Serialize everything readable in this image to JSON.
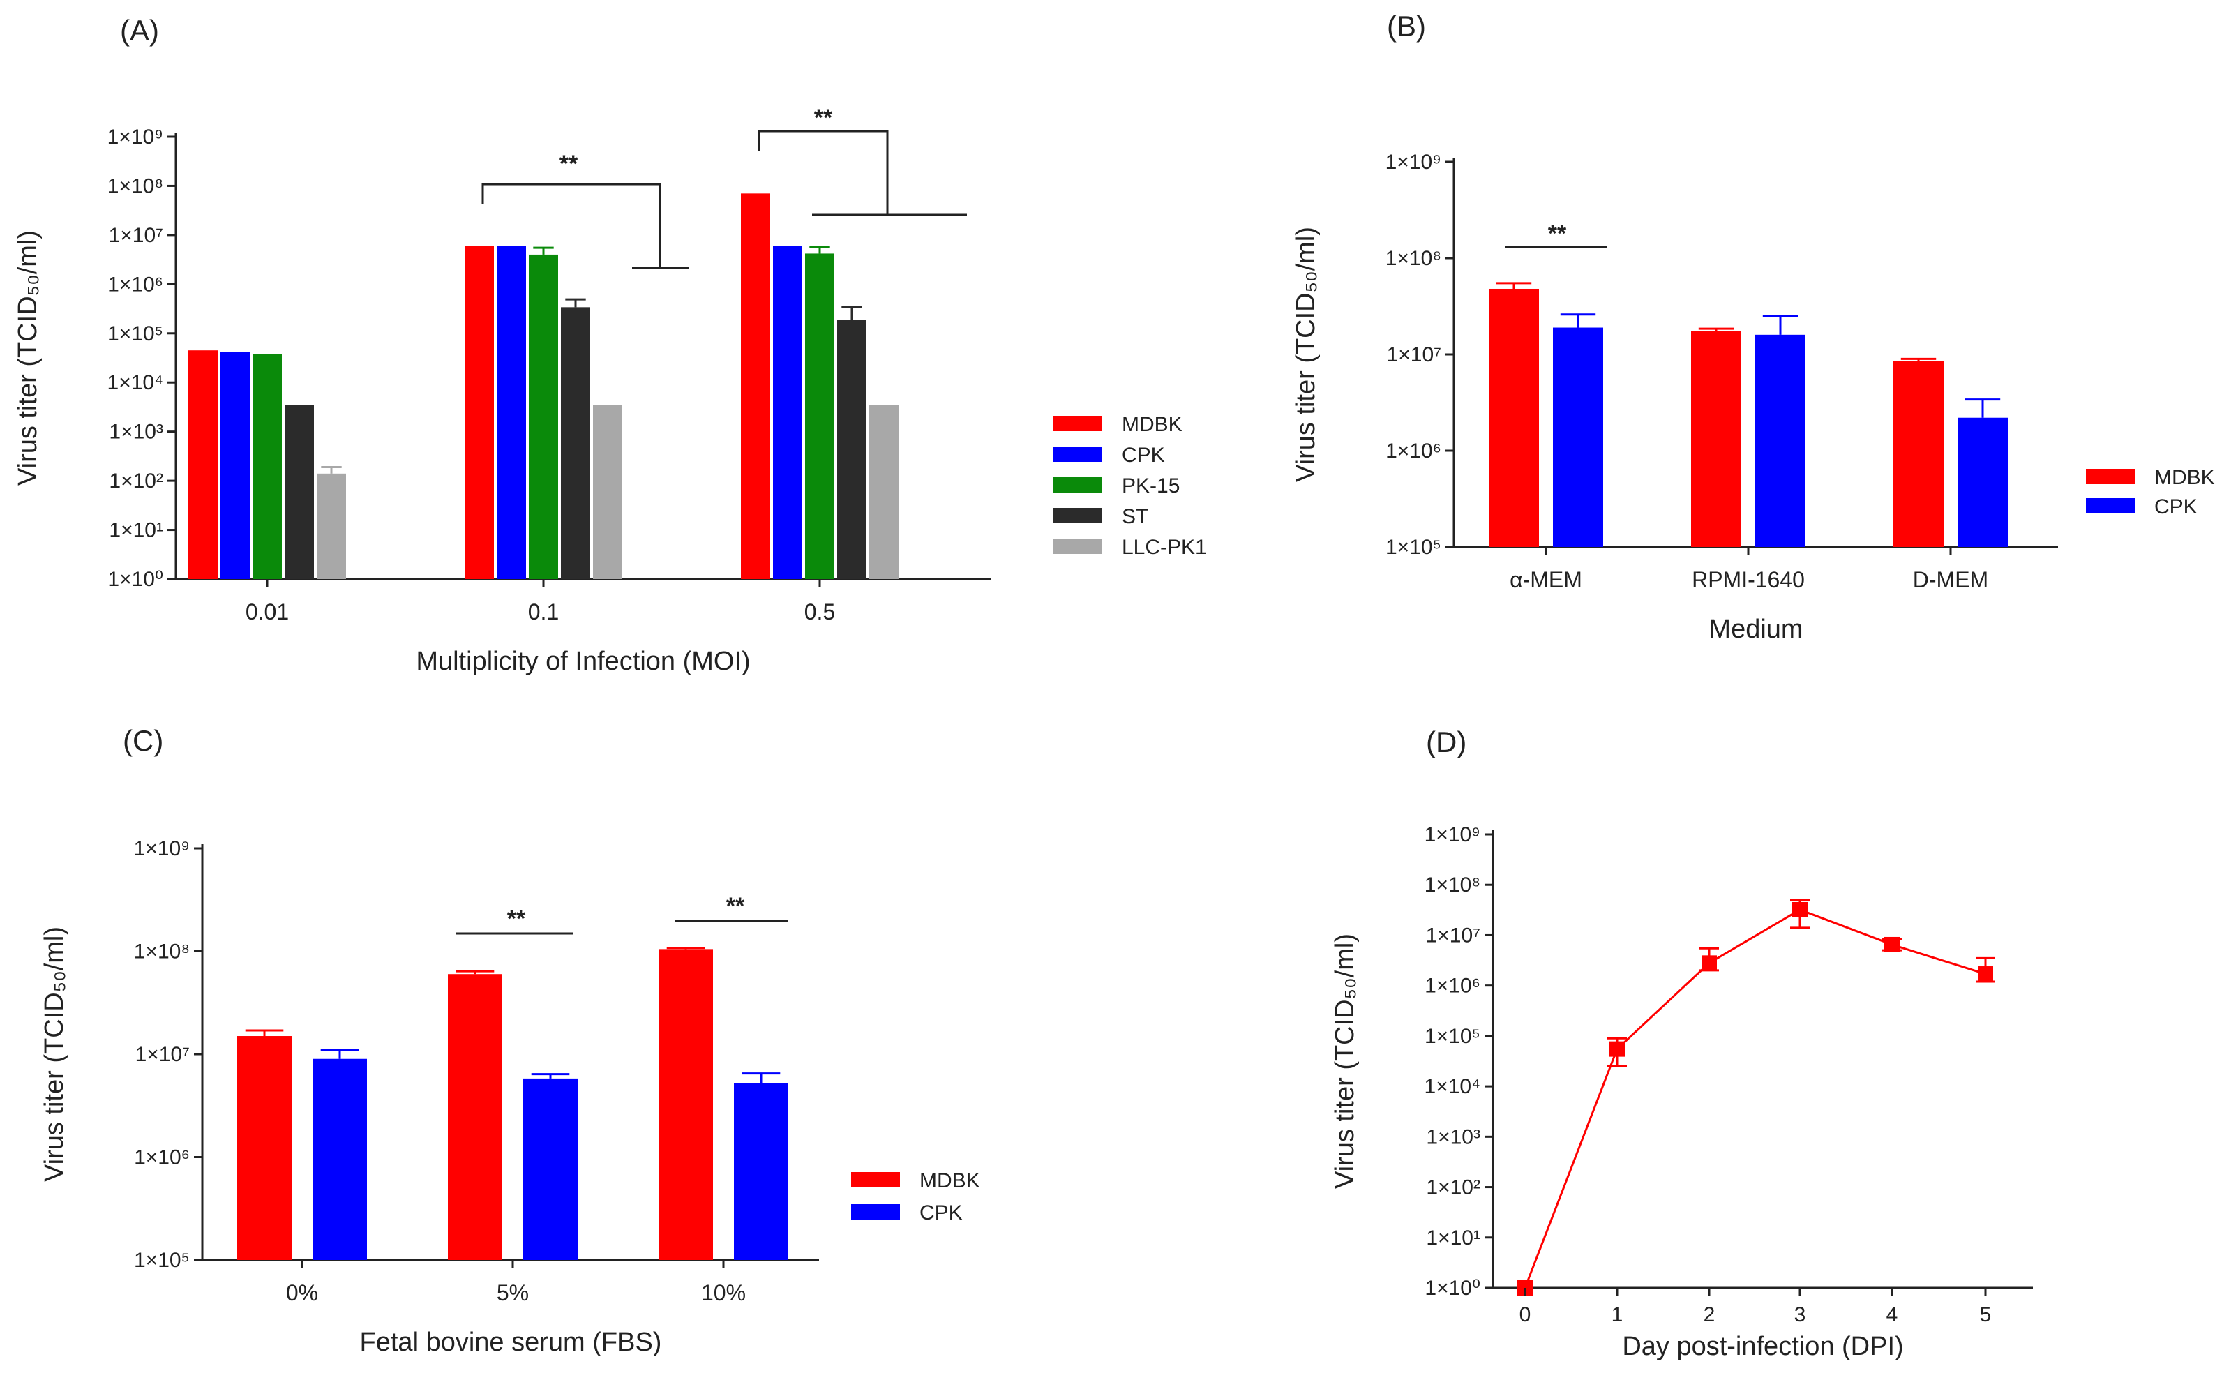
{
  "figure": {
    "panels": [
      "(A)",
      "(B)",
      "(C)",
      "(D)"
    ]
  },
  "colors": {
    "MDBK": "#ff0000",
    "CPK": "#0000ff",
    "PK-15": "#0a8a0a",
    "ST": "#2b2b2b",
    "LLC-PK1": "#a8a8a8",
    "axis": "#222222"
  },
  "chart_data": [
    {
      "panel": "(A)",
      "type": "bar",
      "log_scale": true,
      "ylim": [
        1,
        1000000000
      ],
      "yticks": [
        1,
        10,
        100,
        1000,
        10000,
        100000,
        1000000,
        10000000,
        100000000,
        1000000000
      ],
      "ytick_labels": [
        "1×10⁰",
        "1×10¹",
        "1×10²",
        "1×10³",
        "1×10⁴",
        "1×10⁵",
        "1×10⁶",
        "1×10⁷",
        "1×10⁸",
        "1×10⁹"
      ],
      "xlabel": "Multiplicity of Infection (MOI)",
      "ylabel": "Virus titer (TCID₅₀/ml)",
      "categories": [
        "0.01",
        "0.1",
        "0.5"
      ],
      "series": [
        {
          "name": "MDBK",
          "values": [
            45000,
            6000000,
            70000000
          ],
          "errors": [
            0,
            0,
            0
          ]
        },
        {
          "name": "CPK",
          "values": [
            42000,
            6000000,
            6000000
          ],
          "errors": [
            0,
            0,
            0
          ]
        },
        {
          "name": "PK-15",
          "values": [
            38000,
            4000000,
            4200000
          ],
          "errors": [
            0,
            1500000,
            1500000
          ]
        },
        {
          "name": "ST",
          "values": [
            3500,
            340000,
            190000
          ],
          "errors": [
            0,
            150000,
            160000
          ]
        },
        {
          "name": "LLC-PK1",
          "values": [
            140,
            3500,
            3500
          ],
          "errors": [
            50,
            0,
            0
          ]
        }
      ],
      "legend": [
        "MDBK",
        "CPK",
        "PK-15",
        "ST",
        "LLC-PK1"
      ],
      "significance": [
        "**",
        "**"
      ]
    },
    {
      "panel": "(B)",
      "type": "bar",
      "log_scale": true,
      "ylim": [
        100000,
        1000000000
      ],
      "yticks": [
        100000,
        1000000,
        10000000,
        100000000,
        1000000000
      ],
      "ytick_labels": [
        "1×10⁵",
        "1×10⁶",
        "1×10⁷",
        "1×10⁸",
        "1×10⁹"
      ],
      "xlabel": "Medium",
      "ylabel": "Virus titer (TCID₅₀/ml)",
      "categories": [
        "α-MEM",
        "RPMI-1640",
        "D-MEM"
      ],
      "series": [
        {
          "name": "MDBK",
          "values": [
            48000000,
            17500000,
            8500000
          ],
          "errors": [
            7000000,
            1000000,
            500000
          ]
        },
        {
          "name": "CPK",
          "values": [
            19000000,
            16000000,
            2200000
          ],
          "errors": [
            7000000,
            9000000,
            1200000
          ]
        }
      ],
      "legend": [
        "MDBK",
        "CPK"
      ],
      "significance": [
        "**"
      ]
    },
    {
      "panel": "(C)",
      "type": "bar",
      "log_scale": true,
      "ylim": [
        100000,
        1000000000
      ],
      "yticks": [
        100000,
        1000000,
        10000000,
        100000000,
        1000000000
      ],
      "ytick_labels": [
        "1×10⁵",
        "1×10⁶",
        "1×10⁷",
        "1×10⁸",
        "1×10⁹"
      ],
      "xlabel": "Fetal bovine serum (FBS)",
      "ylabel": "Virus titer (TCID₅₀/ml)",
      "categories": [
        "0%",
        "5%",
        "10%"
      ],
      "series": [
        {
          "name": "MDBK",
          "values": [
            15000000,
            60000000,
            105000000
          ],
          "errors": [
            2000000,
            4000000,
            3000000
          ]
        },
        {
          "name": "CPK",
          "values": [
            9000000,
            5800000,
            5200000
          ],
          "errors": [
            2000000,
            600000,
            1300000
          ]
        }
      ],
      "legend": [
        "MDBK",
        "CPK"
      ],
      "significance": [
        "**",
        "**"
      ]
    },
    {
      "panel": "(D)",
      "type": "line",
      "log_scale": true,
      "ylim": [
        1,
        1000000000
      ],
      "yticks": [
        1,
        10,
        100,
        1000,
        10000,
        100000,
        1000000,
        10000000,
        100000000,
        1000000000
      ],
      "ytick_labels": [
        "1×10⁰",
        "1×10¹",
        "1×10²",
        "1×10³",
        "1×10⁴",
        "1×10⁵",
        "1×10⁶",
        "1×10⁷",
        "1×10⁸",
        "1×10⁹"
      ],
      "xlabel": "Day post-infection (DPI)",
      "ylabel": "Virus titer (TCID₅₀/ml)",
      "x": [
        0,
        1,
        2,
        3,
        4,
        5
      ],
      "x_labels": [
        "0",
        "1",
        "2",
        "3",
        "4",
        "5"
      ],
      "y": [
        1,
        55000,
        2800000,
        32000000,
        6500000,
        1700000
      ],
      "err_low": [
        1,
        25000,
        2000000,
        14000000,
        5000000,
        1200000
      ],
      "err_high": [
        1,
        90000,
        5500000,
        50000000,
        8500000,
        3500000
      ]
    }
  ]
}
